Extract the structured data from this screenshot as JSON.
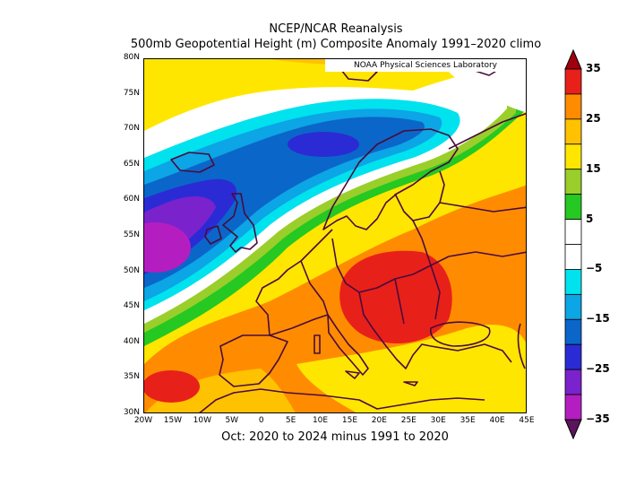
{
  "header": {
    "title_line1": "NCEP/NCAR Reanalysis",
    "title_line2": "500mb Geopotential Height (m) Composite Anomaly 1991–2020 climo"
  },
  "credit": "NOAA Physical Sciences Laboratory",
  "footer": "Oct: 2020 to 2024 minus 1991 to 2020",
  "map_extent": {
    "lon": [
      -20,
      45
    ],
    "lat": [
      30,
      80
    ]
  },
  "axes": {
    "lat_ticks": [
      "80N",
      "75N",
      "70N",
      "65N",
      "60N",
      "55N",
      "50N",
      "45N",
      "40N",
      "35N",
      "30N"
    ],
    "lon_ticks": [
      "20W",
      "15W",
      "10W",
      "5W",
      "0",
      "5E",
      "10E",
      "15E",
      "20E",
      "25E",
      "30E",
      "35E",
      "40E",
      "45E"
    ]
  },
  "colorbar": {
    "labels": [
      "35",
      "25",
      "15",
      "5",
      "−5",
      "−15",
      "−25",
      "−35"
    ],
    "colors_top_to_bottom": [
      "#a0000e",
      "#e8201a",
      "#ff8c00",
      "#ffc200",
      "#ffe600",
      "#9ace2a",
      "#26c822",
      "#ffffff",
      "#ffffff",
      "#00e2ee",
      "#0ca5e5",
      "#0b66c9",
      "#2b2bd6",
      "#7a22cc",
      "#b41ec0",
      "#5c145c"
    ]
  },
  "colors": {
    "background": "#ffe600",
    "coast": "#4a0a3c"
  }
}
